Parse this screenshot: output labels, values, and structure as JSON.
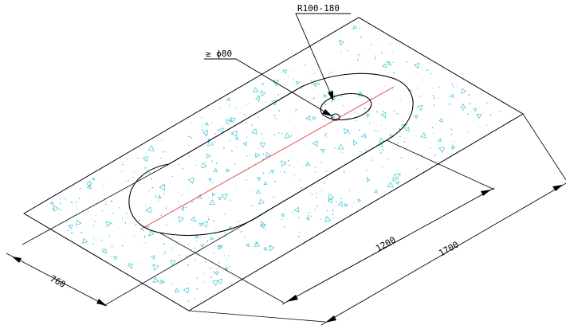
{
  "drawing": {
    "colors": {
      "background": "#ffffff",
      "line": "#000000",
      "centerline": "#e0504a",
      "concrete_hatch": "#3cc4d2"
    },
    "labels": {
      "radius_callout": "R100-180",
      "diameter_callout": "≥ ϕ80",
      "dim_width": "760",
      "dim_inner_length": "1200",
      "dim_total_length": "1700"
    },
    "icons": {
      "hatch_mark": "concrete-aggregate-triangle"
    }
  }
}
